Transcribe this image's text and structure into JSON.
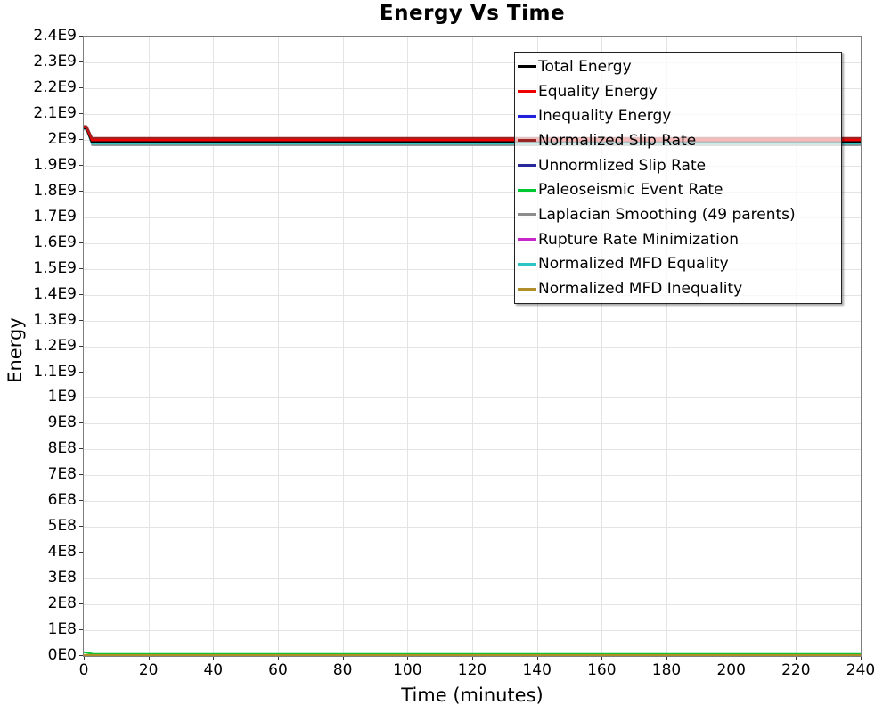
{
  "title": "Energy Vs Time",
  "axes": {
    "x_label": "Time (minutes)",
    "y_label": "Energy"
  },
  "colors": {
    "background": "#ffffff",
    "gridline": "#e4e4e4",
    "plot_frame": "#7f7f7f",
    "tick_mark": "#333333",
    "text": "#000000",
    "legend_border": "#222222"
  },
  "chart_data": {
    "type": "line",
    "title": "Energy Vs Time",
    "xlabel": "Time (minutes)",
    "ylabel": "Energy",
    "xlim": [
      0,
      240
    ],
    "ylim": [
      0,
      2400000000.0
    ],
    "grid": true,
    "legend_position": "top-right",
    "x_ticks": [
      "0",
      "20",
      "40",
      "60",
      "80",
      "100",
      "120",
      "140",
      "160",
      "180",
      "200",
      "220",
      "240"
    ],
    "y_ticks": [
      "2.4E9",
      "2.3E9",
      "2.2E9",
      "2.1E9",
      "2E9",
      "1.9E9",
      "1.8E9",
      "1.7E9",
      "1.6E9",
      "1.5E9",
      "1.4E9",
      "1.3E9",
      "1.2E9",
      "1.1E9",
      "1E9",
      "9E8",
      "8E8",
      "7E8",
      "6E8",
      "5E8",
      "4E8",
      "3E8",
      "2E8",
      "1E8",
      "0E0"
    ],
    "series": [
      {
        "name": "Total Energy",
        "color": "#000000",
        "width": 3,
        "points": [
          [
            0,
            2047000000.0
          ],
          [
            0.9,
            2045000000.0
          ],
          [
            2.6,
            1992000000.0
          ],
          [
            240,
            1992000000.0
          ]
        ]
      },
      {
        "name": "Equality Energy",
        "color": "#ee0000",
        "width": 3,
        "points": [
          [
            0,
            2050500000.0
          ],
          [
            0.9,
            2048500000.0
          ],
          [
            2.6,
            1999500000.0
          ],
          [
            240,
            1999500000.0
          ]
        ]
      },
      {
        "name": "Inequality Energy",
        "color": "#2222dd",
        "width": 2,
        "points": [
          [
            0,
            0
          ],
          [
            240,
            0
          ]
        ]
      },
      {
        "name": "Normalized Slip Rate",
        "color": "#992626",
        "width": 2,
        "points": [
          [
            0,
            2054000000.0
          ],
          [
            0.9,
            2052000000.0
          ],
          [
            2.6,
            2007000000.0
          ],
          [
            240,
            2007000000.0
          ]
        ]
      },
      {
        "name": "Unnormlized Slip Rate",
        "color": "#28289a",
        "width": 2,
        "points": [
          [
            0,
            0
          ],
          [
            240,
            0
          ]
        ]
      },
      {
        "name": "Paleoseismic Event Rate",
        "color": "#00c832",
        "width": 2,
        "points": [
          [
            0,
            15000000.0
          ],
          [
            3,
            8000000.0
          ],
          [
            240,
            8000000.0
          ]
        ]
      },
      {
        "name": "Laplacian Smoothing (49 parents)",
        "color": "#8c8c8c",
        "width": 2,
        "points": [
          [
            0,
            2040000000.0
          ],
          [
            0.9,
            2038000000.0
          ],
          [
            2.6,
            1979000000.0
          ],
          [
            240,
            1979000000.0
          ]
        ]
      },
      {
        "name": "Rupture Rate Minimization",
        "color": "#c926c9",
        "width": 2,
        "points": [
          [
            0,
            0
          ],
          [
            240,
            0
          ]
        ]
      },
      {
        "name": "Normalized MFD Equality",
        "color": "#2fc4c4",
        "width": 2.5,
        "points": [
          [
            0,
            2043500000.0
          ],
          [
            0.9,
            2041500000.0
          ],
          [
            2.6,
            1985500000.0
          ],
          [
            240,
            1985500000.0
          ]
        ]
      },
      {
        "name": "Normalized MFD Inequality",
        "color": "#b08f28",
        "width": 2.5,
        "points": [
          [
            0,
            3000000.0
          ],
          [
            240,
            3000000.0
          ]
        ]
      }
    ],
    "draw_order": [
      2,
      4,
      7,
      6,
      8,
      0,
      1,
      3,
      5,
      9
    ]
  }
}
